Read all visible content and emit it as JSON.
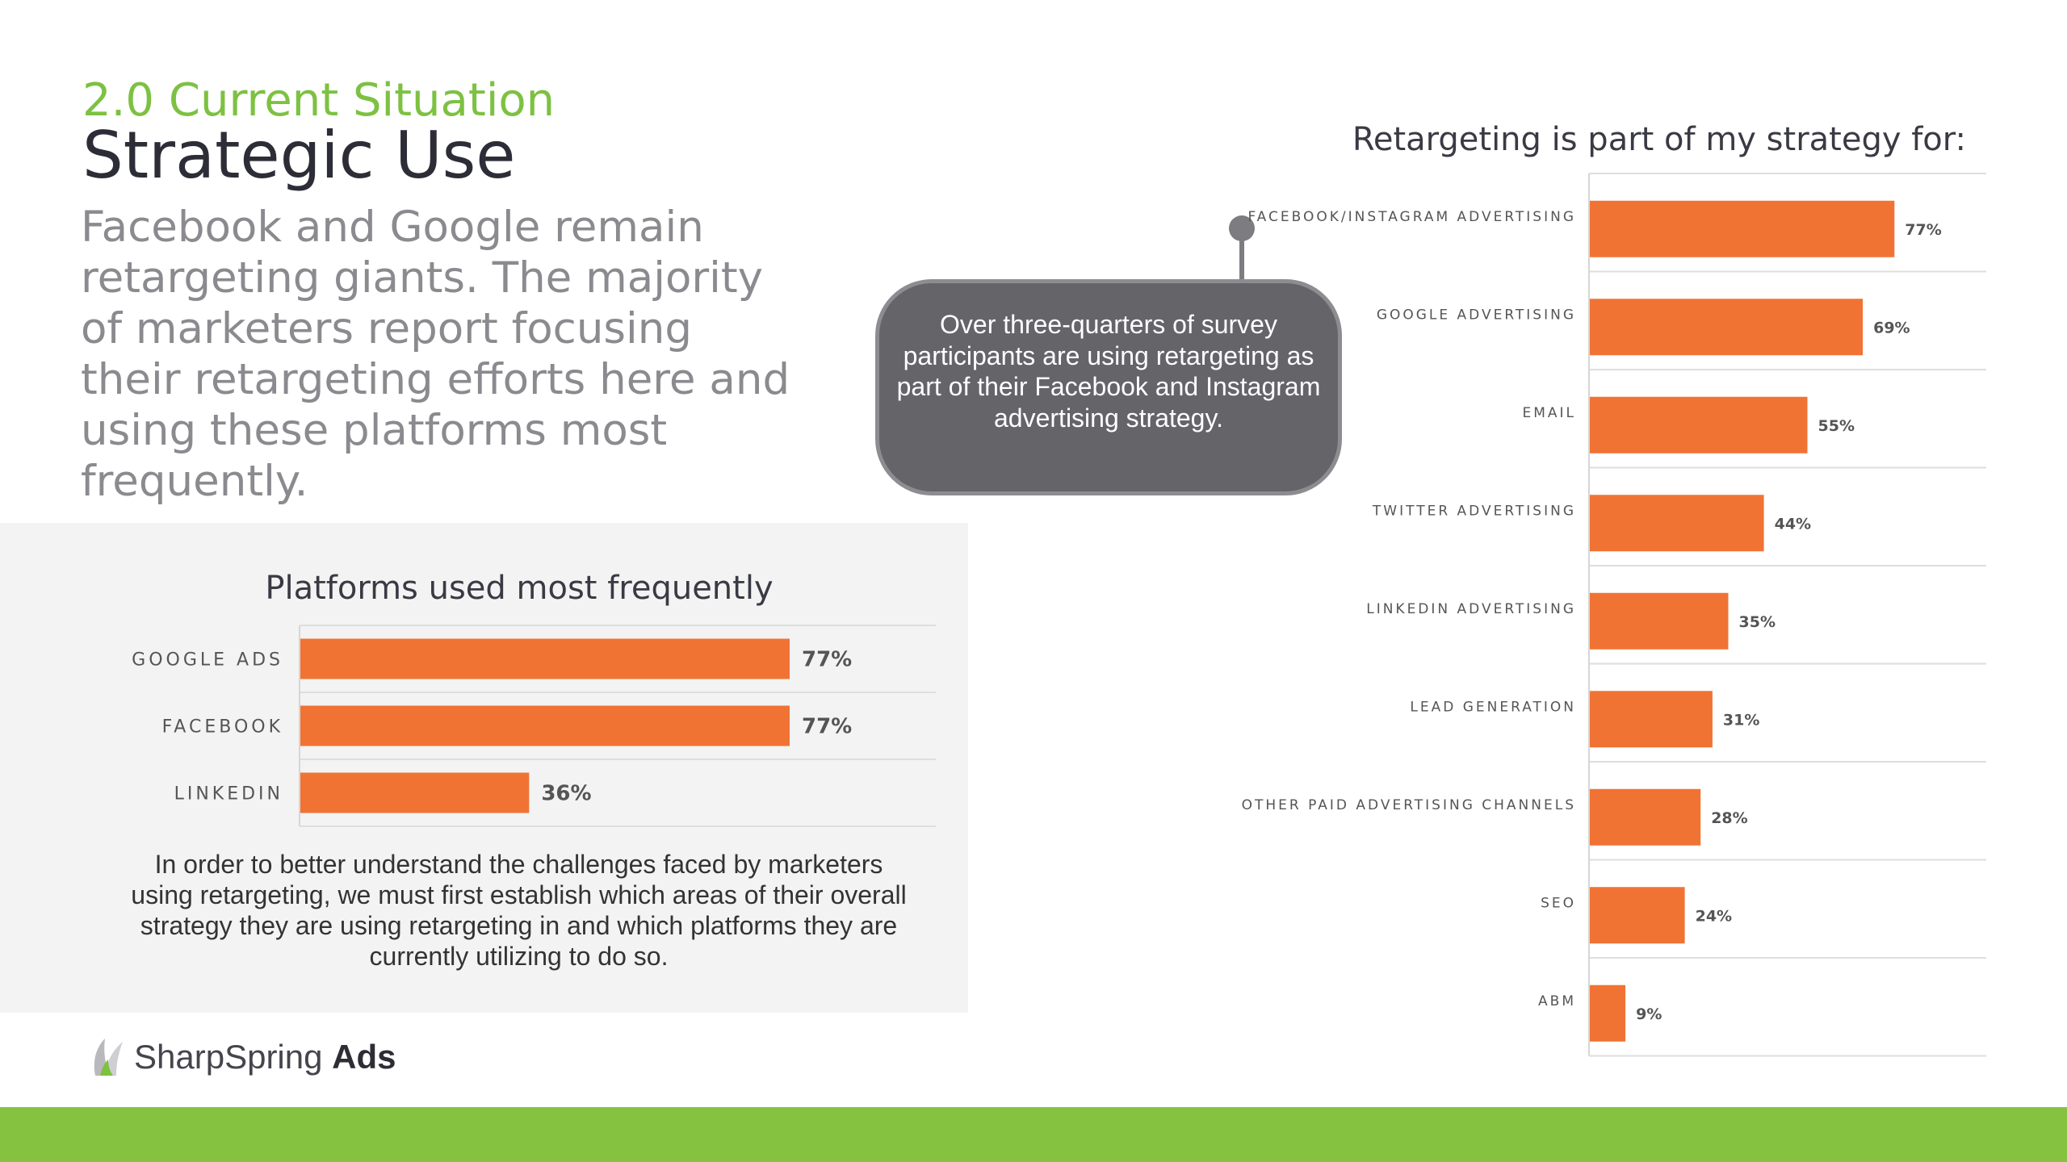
{
  "header": {
    "section": "2.0 Current Situation",
    "title": "Strategic Use",
    "intro": "Facebook and Google remain retargeting giants. The majority of marketers report focusing their retargeting efforts here and using these platforms most frequently."
  },
  "callout": {
    "text": "Over three-quarters of survey participants are using retargeting as part of their Facebook and Instagram advertising strategy."
  },
  "panel": {
    "note": "In order to better understand the challenges faced by marketers using retargeting, we must first establish which areas of their overall strategy they are using retargeting in and which platforms they are currently utilizing to do so."
  },
  "logo": {
    "name": "SharpSpring",
    "suffix": "Ads"
  },
  "colors": {
    "bar": "#f07334",
    "accent_green": "#7dc142",
    "footer_green": "#84c240"
  },
  "chart_data": [
    {
      "type": "bar",
      "orientation": "horizontal",
      "title": "Platforms used most frequently",
      "categories": [
        "GOOGLE ADS",
        "FACEBOOK",
        "LINKEDIN"
      ],
      "values": [
        77,
        77,
        36
      ],
      "value_labels": [
        "77%",
        "77%",
        "36%"
      ],
      "xlim": [
        0,
        100
      ],
      "unit": "%"
    },
    {
      "type": "bar",
      "orientation": "horizontal",
      "title": "Retargeting is part of my strategy for:",
      "categories": [
        "FACEBOOK/INSTAGRAM ADVERTISING",
        "GOOGLE ADVERTISING",
        "EMAIL",
        "TWITTER ADVERTISING",
        "LINKEDIN ADVERTISING",
        "LEAD GENERATION",
        "OTHER PAID ADVERTISING CHANNELS",
        "SEO",
        "ABM"
      ],
      "values": [
        77,
        69,
        55,
        44,
        35,
        31,
        28,
        24,
        9
      ],
      "value_labels": [
        "77%",
        "69%",
        "55%",
        "44%",
        "35%",
        "31%",
        "28%",
        "24%",
        "9%"
      ],
      "xlim": [
        0,
        100
      ],
      "unit": "%"
    }
  ]
}
